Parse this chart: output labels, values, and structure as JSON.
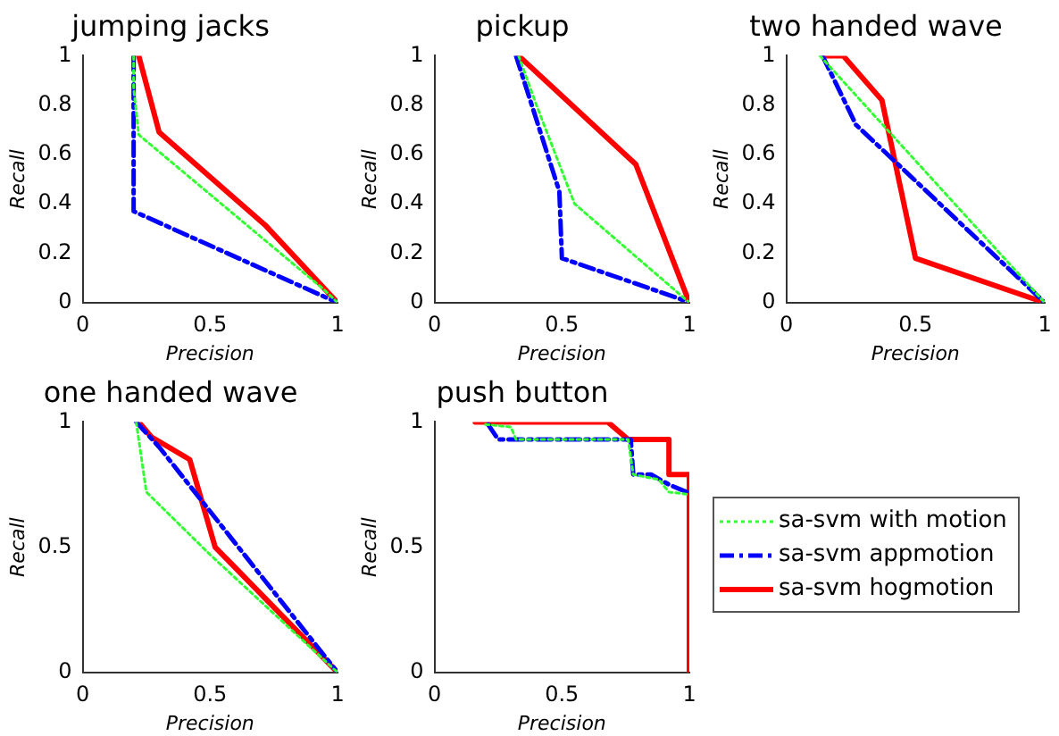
{
  "chart_data": [
    {
      "type": "line",
      "title": "jumping jacks",
      "xlabel": "Precision",
      "ylabel": "Recall",
      "xlim": [
        0,
        1
      ],
      "ylim": [
        0,
        1
      ],
      "xticks": [
        0,
        0.5,
        1
      ],
      "yticks": [
        0,
        0.2,
        0.4,
        0.6,
        0.8,
        1
      ],
      "grid": false,
      "legend": false,
      "marker": "none",
      "series": [
        {
          "color": "#33ff33",
          "line_style": "dotted",
          "x": [
            0.2,
            0.2,
            0.22,
            0.95,
            1
          ],
          "values": [
            1,
            0.87,
            0.68,
            0.05,
            0
          ]
        },
        {
          "color": "#0000ff",
          "line_style": "dashed",
          "x": [
            0.2,
            0.2,
            1
          ],
          "values": [
            1,
            0.37,
            0
          ]
        },
        {
          "color": "#ff0000",
          "line_style": "solid",
          "x": [
            0.22,
            0.3,
            0.72,
            1
          ],
          "values": [
            1,
            0.69,
            0.31,
            0
          ]
        }
      ]
    },
    {
      "type": "line",
      "title": "pickup",
      "xlabel": "Precision",
      "ylabel": "Recall",
      "xlim": [
        0,
        1
      ],
      "ylim": [
        0,
        1
      ],
      "xticks": [
        0,
        0.5,
        1
      ],
      "yticks": [
        0,
        0.2,
        0.4,
        0.6,
        0.8,
        1
      ],
      "grid": false,
      "legend": false,
      "marker": "none",
      "series": [
        {
          "color": "#33ff33",
          "line_style": "dotted",
          "x": [
            0.33,
            0.4,
            0.55,
            1
          ],
          "values": [
            1,
            0.8,
            0.4,
            0
          ]
        },
        {
          "color": "#0000ff",
          "line_style": "dashed",
          "x": [
            0.32,
            0.49,
            0.5,
            0.95,
            1
          ],
          "values": [
            1,
            0.45,
            0.18,
            0.02,
            0
          ]
        },
        {
          "color": "#ff0000",
          "line_style": "solid",
          "x": [
            0.33,
            0.79,
            1
          ],
          "values": [
            1,
            0.56,
            0
          ]
        }
      ]
    },
    {
      "type": "line",
      "title": "two handed wave",
      "xlabel": "Precision",
      "ylabel": "Recall",
      "xlim": [
        0,
        1
      ],
      "ylim": [
        0,
        1
      ],
      "xticks": [
        0,
        0.5,
        1
      ],
      "yticks": [
        0,
        0.2,
        0.4,
        0.6,
        0.8,
        1
      ],
      "grid": false,
      "legend": false,
      "marker": "none",
      "series": [
        {
          "color": "#33ff33",
          "line_style": "dotted",
          "x": [
            0.13,
            1
          ],
          "values": [
            1,
            0
          ]
        },
        {
          "color": "#0000ff",
          "line_style": "dashed",
          "x": [
            0.14,
            0.27,
            1
          ],
          "values": [
            1,
            0.72,
            0
          ]
        },
        {
          "color": "#ff0000",
          "line_style": "solid",
          "x": [
            0.15,
            0.22,
            0.37,
            0.5,
            1
          ],
          "values": [
            1,
            1,
            0.82,
            0.18,
            0
          ]
        }
      ]
    },
    {
      "type": "line",
      "title": "one handed wave",
      "xlabel": "Precision",
      "ylabel": "Recall",
      "xlim": [
        0,
        1
      ],
      "ylim": [
        0,
        1
      ],
      "xticks": [
        0,
        0.5,
        1
      ],
      "yticks": [
        0,
        0.5,
        1
      ],
      "grid": false,
      "legend": false,
      "marker": "none",
      "series": [
        {
          "color": "#33ff33",
          "line_style": "dotted",
          "x": [
            0.21,
            0.25,
            0.5,
            1
          ],
          "values": [
            1,
            0.72,
            0.47,
            0
          ]
        },
        {
          "color": "#0000ff",
          "line_style": "dashed",
          "x": [
            0.21,
            0.3,
            1
          ],
          "values": [
            1,
            0.9,
            0
          ]
        },
        {
          "color": "#ff0000",
          "line_style": "solid",
          "x": [
            0.22,
            0.27,
            0.42,
            0.52,
            1
          ],
          "values": [
            1,
            0.94,
            0.85,
            0.5,
            0
          ]
        }
      ]
    },
    {
      "type": "line",
      "title": "push button",
      "xlabel": "Precision",
      "ylabel": "Recall",
      "xlim": [
        0,
        1
      ],
      "ylim": [
        0,
        1
      ],
      "xticks": [
        0,
        0.5,
        1
      ],
      "yticks": [
        0,
        0.5,
        1
      ],
      "grid": false,
      "legend": "right",
      "marker": "none",
      "series": [
        {
          "name": "sa-svm with motion",
          "color": "#33ff33",
          "line_style": "dotted",
          "x": [
            0.2,
            0.3,
            0.32,
            0.76,
            0.78,
            0.88,
            0.92,
            1
          ],
          "values": [
            0.99,
            0.98,
            0.93,
            0.93,
            0.79,
            0.77,
            0.72,
            0.71
          ]
        },
        {
          "name": "sa-svm appmotion",
          "color": "#0000ff",
          "line_style": "dashed",
          "x": [
            0.21,
            0.25,
            0.77,
            0.78,
            0.85,
            0.92,
            0.99
          ],
          "values": [
            0.99,
            0.93,
            0.93,
            0.79,
            0.79,
            0.75,
            0.72
          ]
        },
        {
          "name": "sa-svm hogmotion",
          "color": "#ff0000",
          "line_style": "solid",
          "x": [
            0.16,
            0.68,
            0.76,
            0.92,
            0.92,
            1,
            1
          ],
          "values": [
            1,
            1,
            0.93,
            0.93,
            0.79,
            0.79,
            0
          ]
        }
      ]
    }
  ]
}
